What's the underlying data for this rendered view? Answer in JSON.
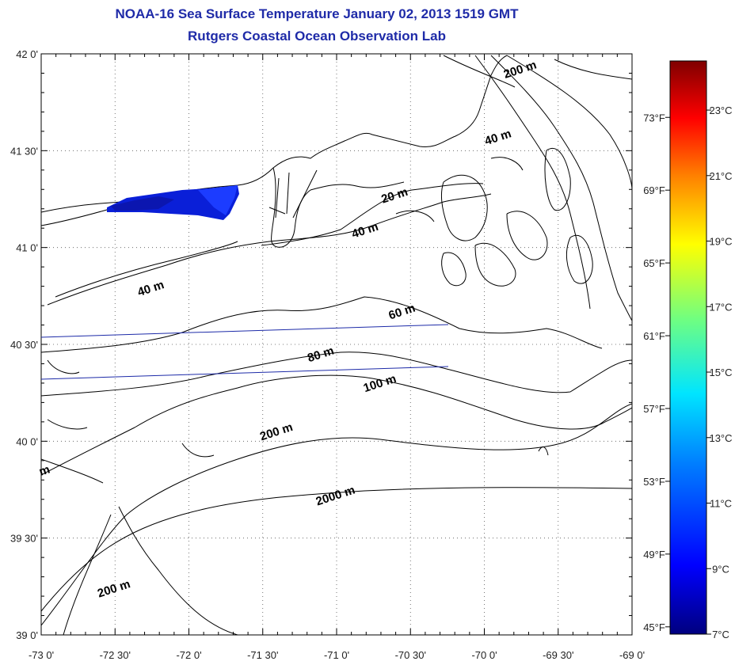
{
  "title": "NOAA-16 Sea Surface Temperature January 02, 2013 1519 GMT",
  "subtitle": "Rutgers Coastal Ocean Observation Lab",
  "map": {
    "lon_labels": [
      "-73 0'",
      "-72 30'",
      "-72 0'",
      "-71 30'",
      "-71 0'",
      "-70 30'",
      "-70 0'",
      "-69 30'",
      "-69 0'"
    ],
    "lat_labels": [
      "42 0'",
      "41 30'",
      "41 0'",
      "40 30'",
      "40 0'",
      "39 30'",
      "39 0'"
    ],
    "lon_range": [
      -73,
      -69
    ],
    "lat_range": [
      39,
      42
    ],
    "contours": [
      {
        "label": "200 m",
        "lon": -69.75,
        "lat": 41.9
      },
      {
        "label": "40 m",
        "lon": -69.9,
        "lat": 41.55
      },
      {
        "label": "20 m",
        "lon": -70.6,
        "lat": 41.25
      },
      {
        "label": "40 m",
        "lon": -70.8,
        "lat": 41.07
      },
      {
        "label": "40 m",
        "lon": -72.25,
        "lat": 40.77
      },
      {
        "label": "60 m",
        "lon": -70.55,
        "lat": 40.65
      },
      {
        "label": "80 m",
        "lon": -71.1,
        "lat": 40.43
      },
      {
        "label": "100 m",
        "lon": -70.7,
        "lat": 40.28
      },
      {
        "label": "200 m",
        "lon": -71.4,
        "lat": 40.03
      },
      {
        "label": "2000 m",
        "lon": -71.0,
        "lat": 39.7
      },
      {
        "label": "200 m",
        "lon": -72.5,
        "lat": 39.22
      },
      {
        "label": "m",
        "lon": -72.97,
        "lat": 39.83
      }
    ]
  },
  "colorbar": {
    "celsius_labels": [
      "23°C",
      "21°C",
      "19°C",
      "17°C",
      "15°C",
      "13°C",
      "11°C",
      "9°C",
      "7°C"
    ],
    "celsius_values": [
      23,
      21,
      19,
      17,
      15,
      13,
      11,
      9,
      7
    ],
    "fahrenheit_labels": [
      "73°F",
      "69°F",
      "65°F",
      "61°F",
      "57°F",
      "53°F",
      "49°F",
      "45°F"
    ],
    "fahrenheit_values": [
      73,
      69,
      65,
      61,
      57,
      53,
      49,
      45
    ],
    "range_c": [
      7,
      24.5
    ],
    "colors": [
      "#00007f",
      "#0000ff",
      "#007fff",
      "#00ffff",
      "#7fff7f",
      "#ffff00",
      "#ff7f00",
      "#ff0000",
      "#7f0000"
    ]
  }
}
